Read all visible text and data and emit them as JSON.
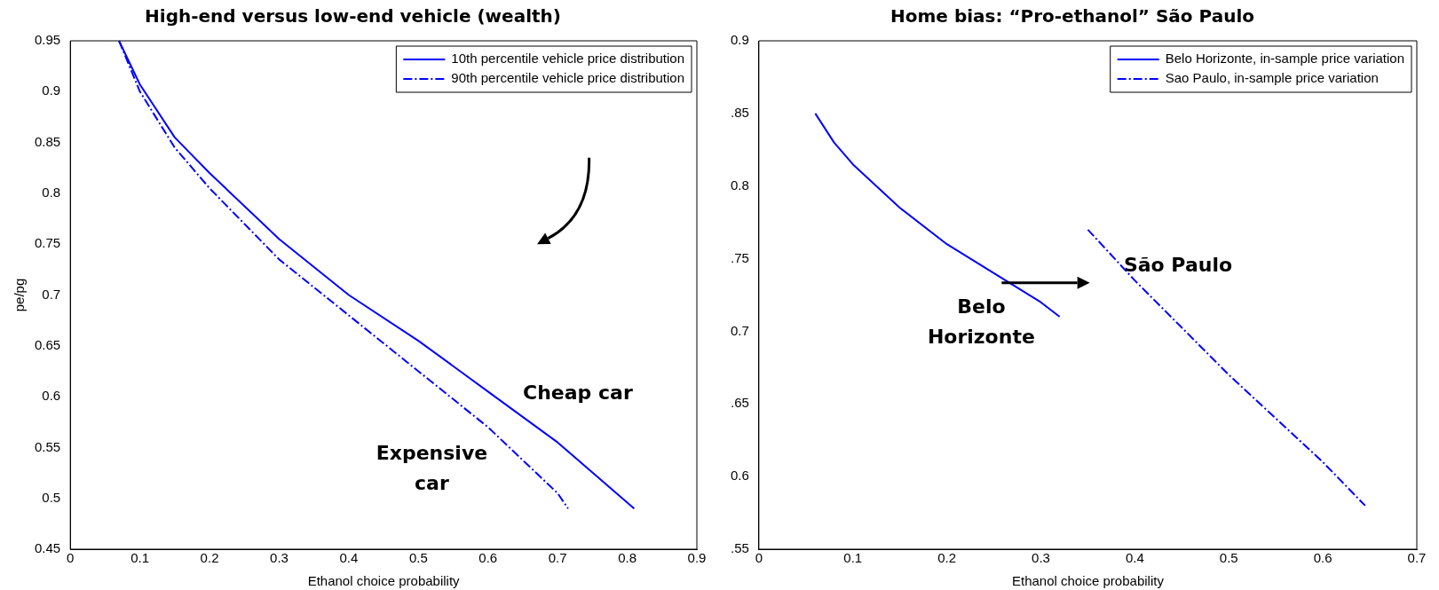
{
  "chart_data": [
    {
      "type": "line",
      "title": "High-end versus low-end vehicle (wealth)",
      "xlabel": "Ethanol choice probability",
      "ylabel": "pe/pg",
      "xlim": [
        0,
        0.9
      ],
      "xticks": [
        0,
        0.1,
        0.2,
        0.3,
        0.4,
        0.5,
        0.6,
        0.7,
        0.8,
        0.9
      ],
      "ylim": [
        0.45,
        0.95
      ],
      "yticks": [
        0.45,
        0.5,
        0.55,
        0.6,
        0.65,
        0.7,
        0.75,
        0.8,
        0.85,
        0.9,
        0.95
      ],
      "legend": "top right",
      "grid": false,
      "marker": "none",
      "series": [
        {
          "name": "10th percentile vehicle price distribution",
          "color": "#0000ff",
          "line_style": "solid",
          "x": [
            0.07,
            0.1,
            0.15,
            0.2,
            0.3,
            0.4,
            0.5,
            0.6,
            0.7,
            0.81
          ],
          "values": [
            0.95,
            0.907,
            0.855,
            0.82,
            0.755,
            0.7,
            0.655,
            0.605,
            0.555,
            0.49
          ]
        },
        {
          "name": "90th percentile vehicle price distribution",
          "color": "#0000ff",
          "line_style": "dashed",
          "x": [
            0.07,
            0.1,
            0.15,
            0.2,
            0.3,
            0.4,
            0.5,
            0.6,
            0.7,
            0.715
          ],
          "values": [
            0.95,
            0.9,
            0.845,
            0.805,
            0.735,
            0.68,
            0.625,
            0.57,
            0.505,
            0.49
          ]
        }
      ],
      "annotations": [
        "Cheap car",
        "Expensive\ncar"
      ]
    },
    {
      "type": "line",
      "title": "Home bias: “Pro-ethanol” São Paulo",
      "xlabel": "Ethanol choice probability",
      "xlim": [
        0,
        0.7
      ],
      "xticks": [
        0,
        0.1,
        0.2,
        0.3,
        0.4,
        0.5,
        0.6,
        0.7
      ],
      "ylim": [
        0.55,
        0.9
      ],
      "yticks": [
        {
          "value": 0.55,
          "label": ".55"
        },
        {
          "value": 0.6,
          "label": "0.6"
        },
        {
          "value": 0.65,
          "label": ".65"
        },
        {
          "value": 0.7,
          "label": "0.7"
        },
        {
          "value": 0.75,
          "label": ".75"
        },
        {
          "value": 0.8,
          "label": "0.8"
        },
        {
          "value": 0.85,
          "label": ".85"
        },
        {
          "value": 0.9,
          "label": "0.9"
        }
      ],
      "legend": "top right",
      "grid": false,
      "marker": "none",
      "series": [
        {
          "name": "Belo Horizonte, in-sample price variation",
          "color": "#0000ff",
          "line_style": "solid",
          "x": [
            0.06,
            0.08,
            0.1,
            0.15,
            0.2,
            0.25,
            0.3,
            0.32
          ],
          "values": [
            0.85,
            0.83,
            0.815,
            0.785,
            0.76,
            0.74,
            0.72,
            0.71
          ]
        },
        {
          "name": "Sao Paulo, in-sample price variation",
          "color": "#0000ff",
          "line_style": "dashed",
          "x": [
            0.35,
            0.4,
            0.5,
            0.6,
            0.645
          ],
          "values": [
            0.77,
            0.735,
            0.67,
            0.61,
            0.58
          ]
        }
      ],
      "annotations": [
        "Belo\nHorizonte",
        "São Paulo"
      ]
    }
  ]
}
